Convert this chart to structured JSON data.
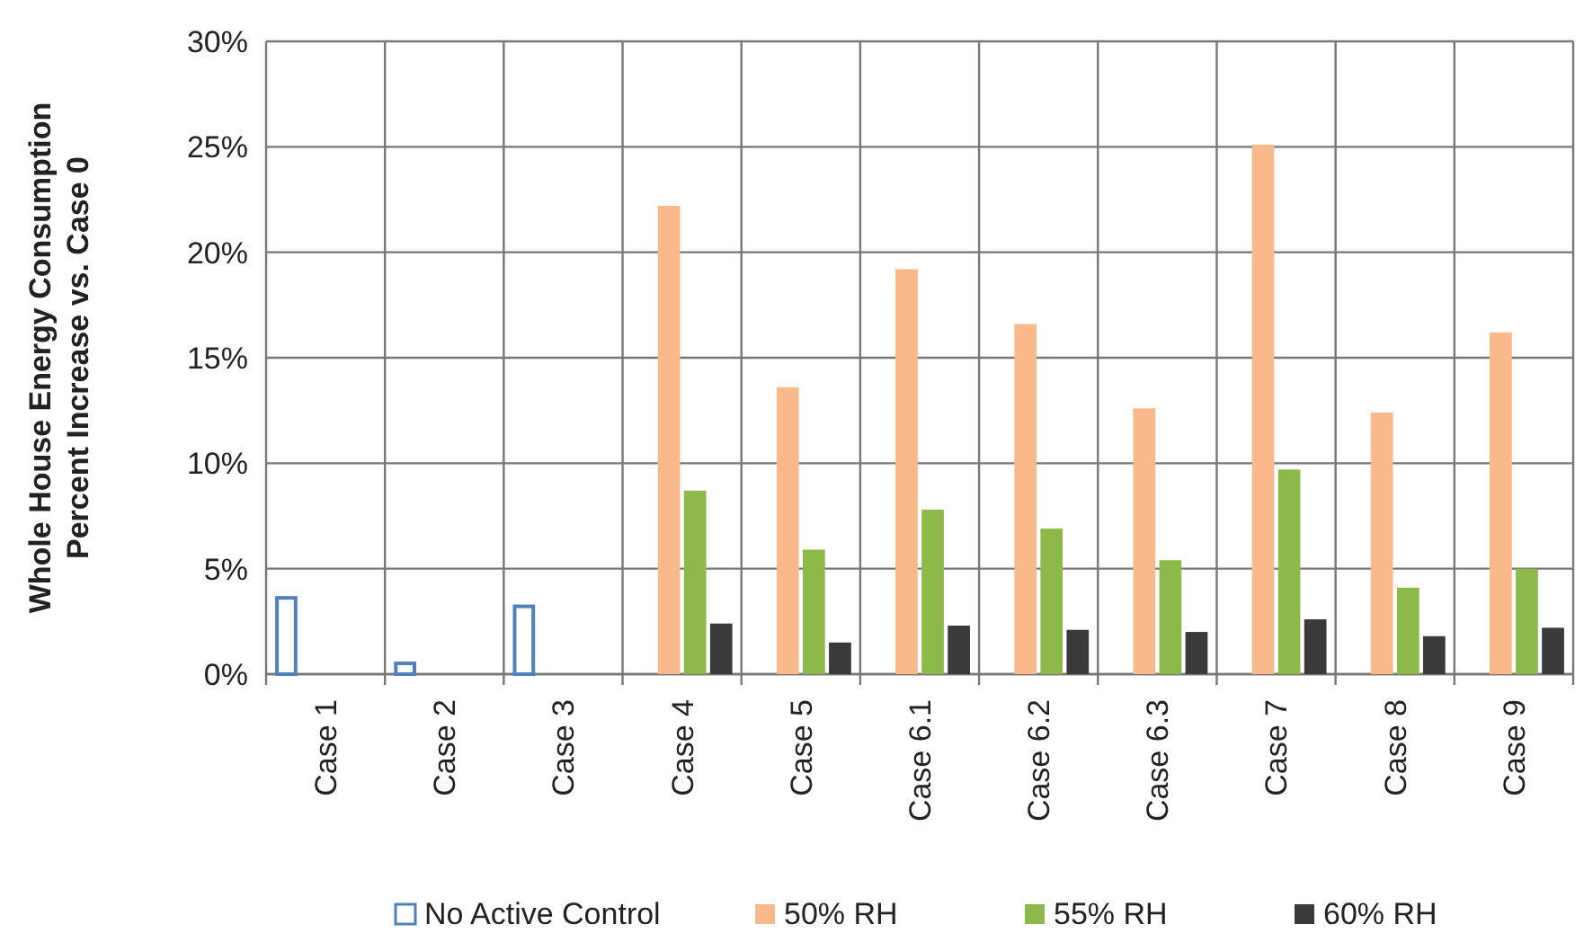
{
  "chart_data": {
    "type": "bar",
    "ylabel": "Whole House Energy Consumption\nPercent Increase vs. Case 0",
    "categories": [
      "Case 1",
      "Case 2",
      "Case 3",
      "Case 4",
      "Case 5",
      "Case 6.1",
      "Case 6.2",
      "Case 6.3",
      "Case 7",
      "Case 8",
      "Case 9"
    ],
    "series": [
      {
        "name": "No Active Control",
        "color": "#4f81bd",
        "values": [
          3.7,
          0.6,
          3.3,
          null,
          null,
          null,
          null,
          null,
          null,
          null,
          null
        ]
      },
      {
        "name": "50% RH",
        "color": "#f9b98a",
        "values": [
          null,
          null,
          null,
          22.2,
          13.6,
          19.2,
          16.6,
          12.6,
          25.1,
          12.4,
          16.2
        ]
      },
      {
        "name": "55% RH",
        "color": "#8db94a",
        "values": [
          null,
          null,
          null,
          8.7,
          5.9,
          7.8,
          6.9,
          5.4,
          9.7,
          4.1,
          5.0
        ]
      },
      {
        "name": "60% RH",
        "color": "#3a3a3a",
        "values": [
          null,
          null,
          null,
          2.4,
          1.5,
          2.3,
          2.1,
          2.0,
          2.6,
          1.8,
          2.2
        ]
      }
    ],
    "ylim": [
      0,
      30
    ],
    "yticks": [
      {
        "value": 0,
        "label": "0%"
      },
      {
        "value": 5,
        "label": "5%"
      },
      {
        "value": 10,
        "label": "10%"
      },
      {
        "value": 15,
        "label": "15%"
      },
      {
        "value": 20,
        "label": "20%"
      },
      {
        "value": 25,
        "label": "25%"
      },
      {
        "value": 30,
        "label": "30%"
      }
    ],
    "grid": true,
    "legend": "bottom"
  }
}
